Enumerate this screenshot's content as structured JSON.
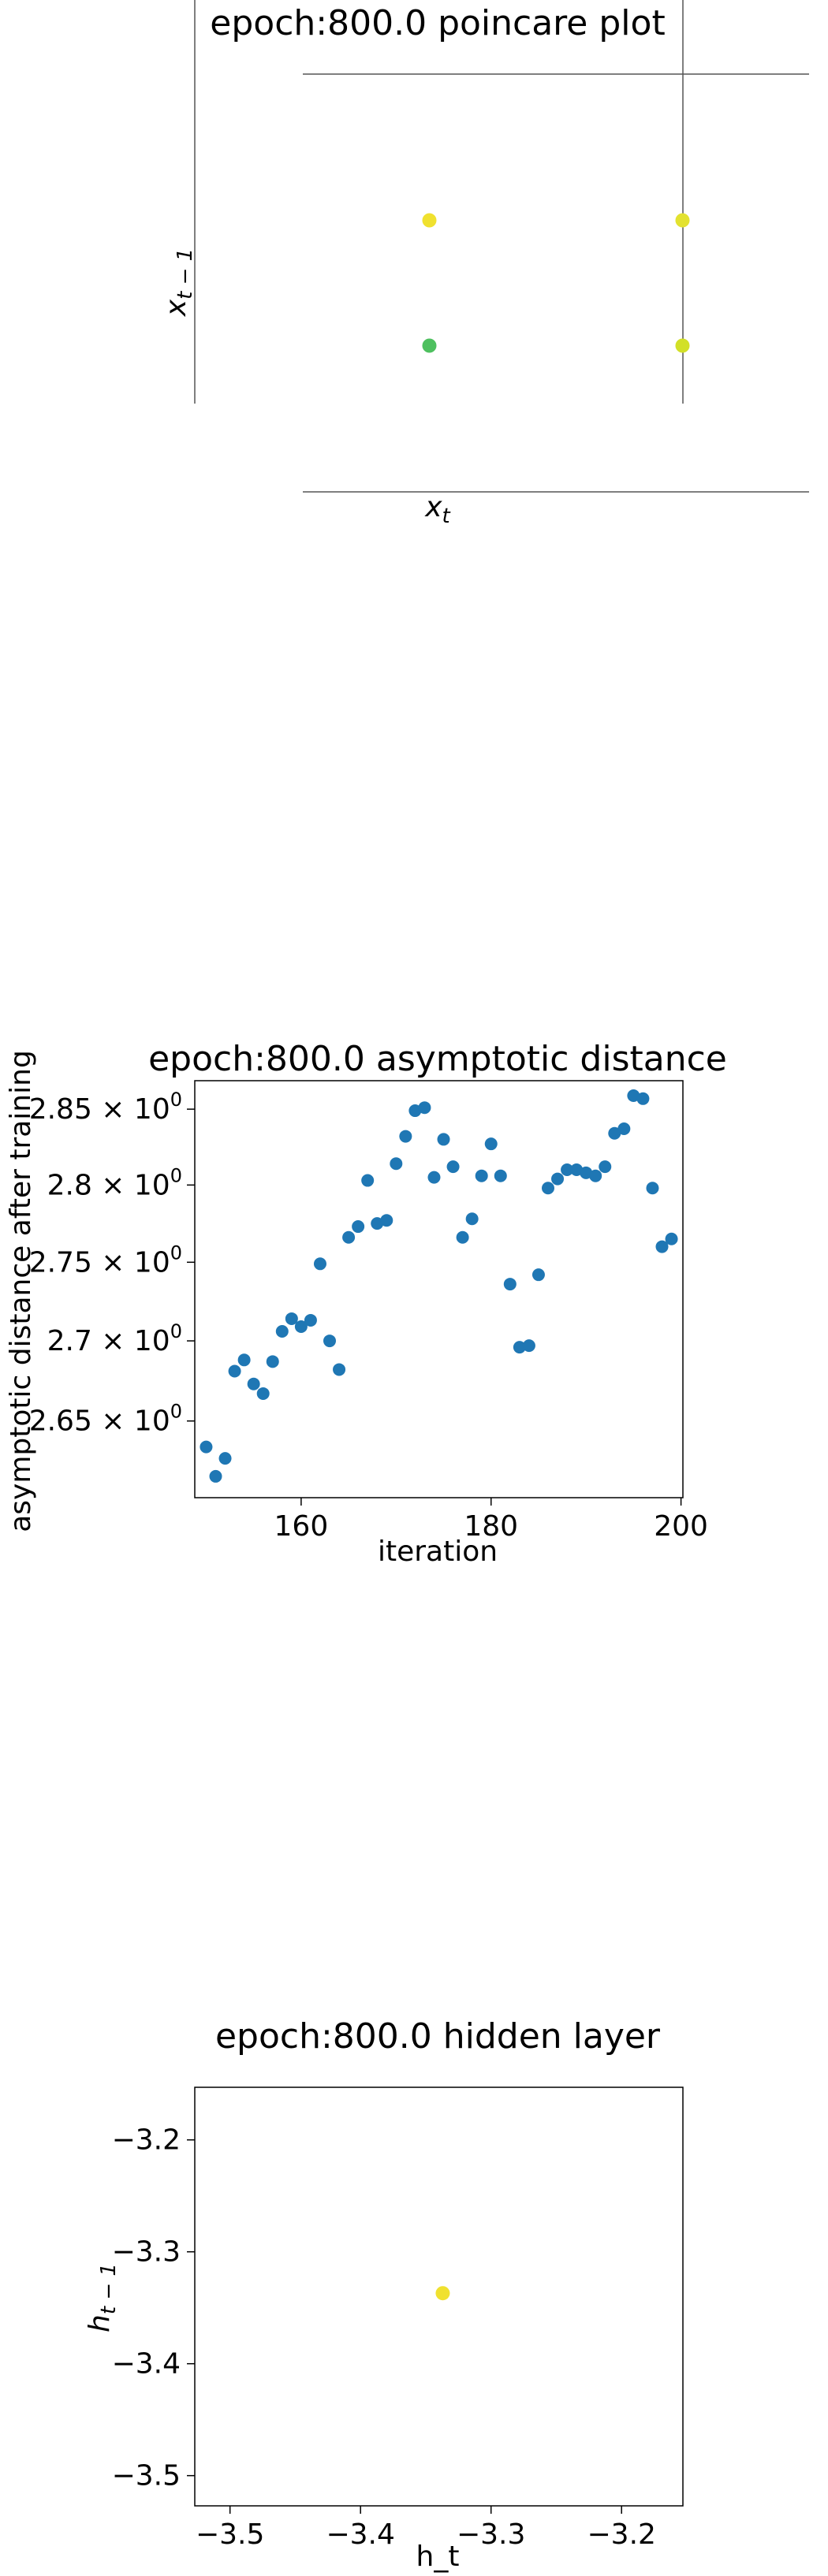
{
  "chart_data": [
    {
      "type": "scatter",
      "title": "epoch:800.0 poincare plot",
      "xlabel": "x_t",
      "ylabel": "x_{t-1}",
      "xlim": [
        0,
        1
      ],
      "ylim": [
        0,
        1
      ],
      "axes_visible": false,
      "points": [
        {
          "x": 0.25,
          "y": 0.65,
          "color": "#f0e12f"
        },
        {
          "x": 0.75,
          "y": 0.65,
          "color": "#e3e230"
        },
        {
          "x": 0.25,
          "y": 0.35,
          "color": "#4ec05f"
        },
        {
          "x": 0.75,
          "y": 0.35,
          "color": "#d2e027"
        }
      ]
    },
    {
      "type": "scatter",
      "title": "epoch:800.0 asymptotic distance",
      "xlabel": "iteration",
      "ylabel": "asymptotic distance after training",
      "xlim": [
        148.8,
        200.2
      ],
      "ylim": [
        2.603,
        2.869
      ],
      "yscale": "log",
      "xticks": [
        160,
        180,
        200
      ],
      "yticks": [
        {
          "value": 2.65,
          "mantissa": "2.65"
        },
        {
          "value": 2.7,
          "mantissa": "2.7"
        },
        {
          "value": 2.75,
          "mantissa": "2.75"
        },
        {
          "value": 2.8,
          "mantissa": "2.8"
        },
        {
          "value": 2.85,
          "mantissa": "2.85"
        }
      ],
      "tick_exponent_base": "10",
      "tick_exponent": "0",
      "tick_times": "×",
      "marker_color": "#1f77b4",
      "x": [
        150,
        151,
        152,
        153,
        154,
        155,
        156,
        157,
        158,
        159,
        160,
        161,
        162,
        163,
        164,
        165,
        166,
        167,
        168,
        169,
        170,
        171,
        172,
        173,
        174,
        175,
        176,
        177,
        178,
        179,
        180,
        181,
        182,
        183,
        184,
        185,
        186,
        187,
        188,
        189,
        190,
        191,
        192,
        193,
        194,
        195,
        196,
        197,
        198,
        199
      ],
      "y": [
        2.634,
        2.616,
        2.627,
        2.681,
        2.688,
        2.673,
        2.667,
        2.687,
        2.706,
        2.714,
        2.709,
        2.713,
        2.749,
        2.7,
        2.682,
        2.766,
        2.773,
        2.803,
        2.775,
        2.777,
        2.814,
        2.832,
        2.849,
        2.851,
        2.805,
        2.83,
        2.812,
        2.766,
        2.778,
        2.806,
        2.827,
        2.806,
        2.736,
        2.696,
        2.697,
        2.742,
        2.798,
        2.804,
        2.81,
        2.81,
        2.808,
        2.806,
        2.812,
        2.834,
        2.837,
        2.859,
        2.857,
        2.798,
        2.76,
        2.765
      ]
    },
    {
      "type": "scatter",
      "title": "epoch:800.0 hidden layer",
      "xlabel": "h_t",
      "ylabel": "h_{t-1}",
      "xlim": [
        -3.527,
        -3.153
      ],
      "ylim": [
        -3.527,
        -3.153
      ],
      "xticks": [
        -3.5,
        -3.4,
        -3.3,
        -3.2
      ],
      "yticks": [
        -3.5,
        -3.4,
        -3.3,
        -3.2
      ],
      "minus_sign": "−",
      "x_tick_labels": [
        "−3.5",
        "−3.4",
        "−3.3",
        "−3.2"
      ],
      "y_tick_labels": [
        "−3.5",
        "−3.4",
        "−3.3",
        "−3.2"
      ],
      "points": [
        {
          "x": -3.337,
          "y": -3.337,
          "color": "#f0e12f"
        }
      ]
    }
  ]
}
